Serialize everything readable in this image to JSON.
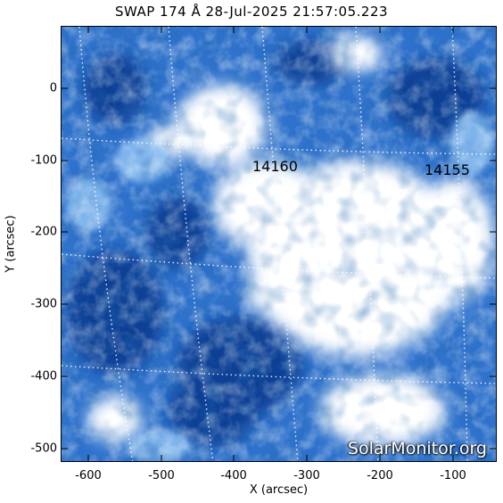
{
  "title": "SWAP 174 Å 28-Jul-2025 21:57:05.223",
  "xlabel": "X (arcsec)",
  "ylabel": "Y (arcsec)",
  "x_ticks": [
    "-600",
    "-500",
    "-400",
    "-300",
    "-200",
    "-100"
  ],
  "y_ticks": [
    "0",
    "-100",
    "-200",
    "-300",
    "-400",
    "-500"
  ],
  "x_range": [
    -640,
    -40
  ],
  "y_range": [
    -520,
    88
  ],
  "active_regions": [
    {
      "label": "14160",
      "x": -345,
      "y": -112
    },
    {
      "label": "14155",
      "x": -118,
      "y": -115
    }
  ],
  "watermark": "SolarMonitor.org",
  "colors": {
    "colormap_dark": "#0a3a8c",
    "colormap_mid": "#3a86e0",
    "colormap_bright": "#ffffff",
    "grid": "#ffffff"
  }
}
